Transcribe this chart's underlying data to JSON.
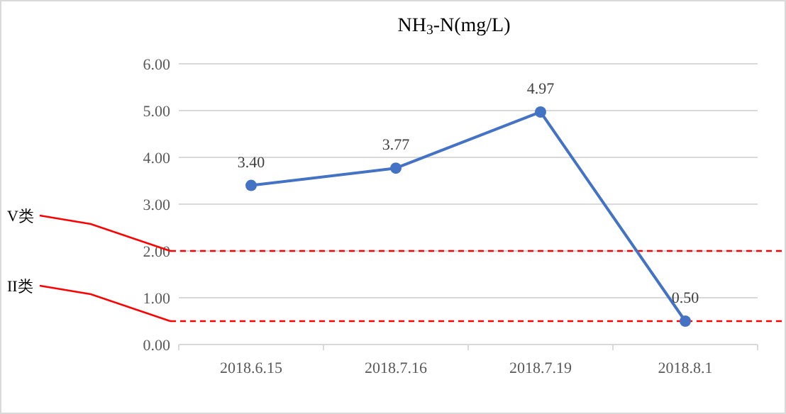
{
  "chart_data": {
    "type": "line",
    "title": "NH$_{3}$-N(mg/L)",
    "categories": [
      "2018.6.15",
      "2018.7.16",
      "2018.7.19",
      "2018.8.1"
    ],
    "series": [
      {
        "color": "#4472c4",
        "values": [
          3.4,
          3.77,
          4.97,
          0.5
        ],
        "value_labels": [
          "3.40",
          "3.77",
          "4.97",
          "0.50"
        ]
      }
    ],
    "ylim": [
      0,
      6
    ],
    "yticks": [
      {
        "value": 0,
        "label": "0.00"
      },
      {
        "value": 1,
        "label": "1.00"
      },
      {
        "value": 2,
        "label": "2.00"
      },
      {
        "value": 3,
        "label": "3.00"
      },
      {
        "value": 4,
        "label": "4.00"
      },
      {
        "value": 5,
        "label": "5.00"
      },
      {
        "value": 6,
        "label": "6.00"
      }
    ],
    "ref_lines": [
      {
        "axis": "y",
        "value": 2,
        "label": "V类",
        "color": "#ff0000",
        "line_style": "dashed"
      },
      {
        "axis": "y",
        "value": 0.5,
        "label": "II类",
        "color": "#ff0000",
        "line_style": "dashed"
      }
    ],
    "grid": "y",
    "marker": "circle",
    "line_style": "solid"
  }
}
